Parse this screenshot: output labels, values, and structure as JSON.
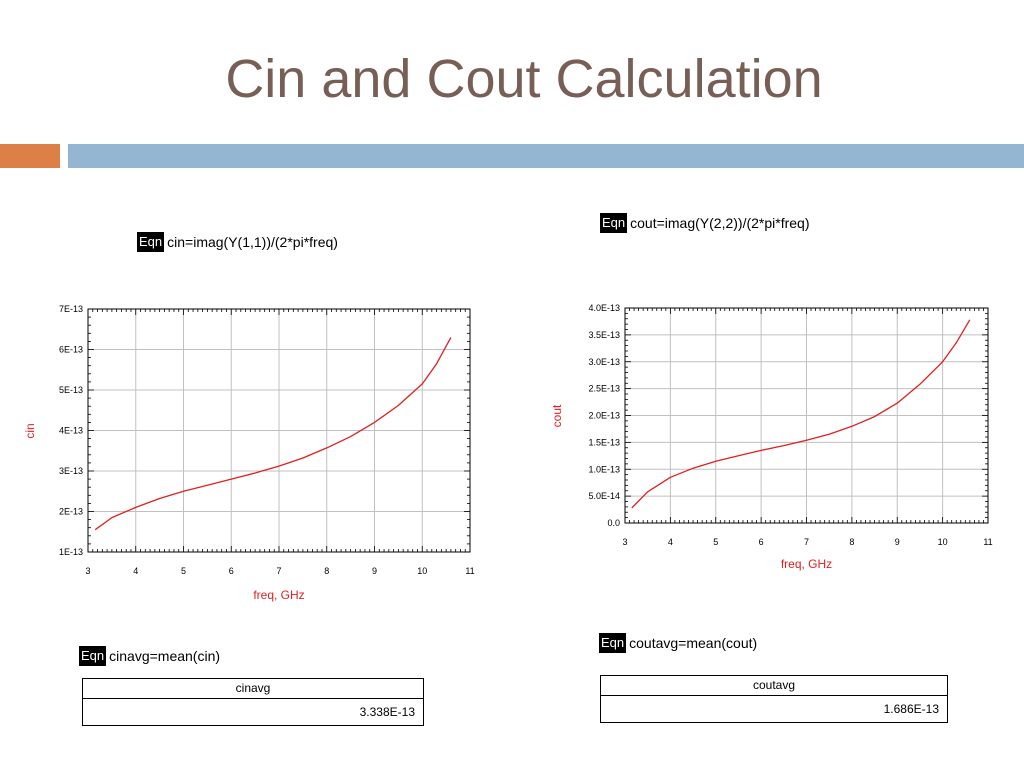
{
  "slide": {
    "title": "Cin and Cout Calculation",
    "colors": {
      "title": "#775f55",
      "accent_orange": "#dd8047",
      "accent_blue": "#94b6d2",
      "trace": "#e02020",
      "axis_label": "#e02020",
      "grid": "#c0c0c0"
    }
  },
  "left": {
    "eqn": {
      "tag": "Eqn",
      "expr": "cin=imag(Y(1,1))/(2*pi*freq)"
    },
    "avg_eqn": {
      "tag": "Eqn",
      "expr": "cinavg=mean(cin)"
    },
    "table": {
      "header": "cinavg",
      "value": "3.338E-13"
    }
  },
  "right": {
    "eqn": {
      "tag": "Eqn",
      "expr": "cout=imag(Y(2,2))/(2*pi*freq)"
    },
    "avg_eqn": {
      "tag": "Eqn",
      "expr": "coutavg=mean(cout)"
    },
    "table": {
      "header": "coutavg",
      "value": "1.686E-13"
    }
  },
  "chart_data": [
    {
      "type": "line",
      "xlabel": "freq, GHz",
      "ylabel": "cin",
      "xlim": [
        3,
        11
      ],
      "ylim": [
        1e-13,
        7e-13
      ],
      "xticks": [
        "3",
        "4",
        "5",
        "6",
        "7",
        "8",
        "9",
        "10",
        "11"
      ],
      "yticks": [
        "1E-13",
        "2E-13",
        "3E-13",
        "4E-13",
        "5E-13",
        "6E-13",
        "7E-13"
      ],
      "grid": true,
      "series": [
        {
          "x": [
            3.15,
            3.5,
            4,
            4.5,
            5,
            5.5,
            6,
            6.5,
            7,
            7.5,
            8,
            8.5,
            9,
            9.5,
            10,
            10.3,
            10.6
          ],
          "y": [
            1.55e-13,
            1.85e-13,
            2.1e-13,
            2.32e-13,
            2.5e-13,
            2.65e-13,
            2.8e-13,
            2.95e-13,
            3.12e-13,
            3.32e-13,
            3.57e-13,
            3.85e-13,
            4.2e-13,
            4.62e-13,
            5.15e-13,
            5.65e-13,
            6.3e-13
          ]
        }
      ]
    },
    {
      "type": "line",
      "xlabel": "freq, GHz",
      "ylabel": "cout",
      "xlim": [
        3,
        11
      ],
      "ylim": [
        0,
        4e-13
      ],
      "xticks": [
        "3",
        "4",
        "5",
        "6",
        "7",
        "8",
        "9",
        "10",
        "11"
      ],
      "yticks": [
        "0.0",
        "5.0E-14",
        "1.0E-13",
        "1.5E-13",
        "2.0E-13",
        "2.5E-13",
        "3.0E-13",
        "3.5E-13",
        "4.0E-13"
      ],
      "grid": true,
      "series": [
        {
          "x": [
            3.15,
            3.5,
            4,
            4.5,
            5,
            5.5,
            6,
            6.5,
            7,
            7.5,
            8,
            8.5,
            9,
            9.5,
            10,
            10.3,
            10.6
          ],
          "y": [
            2.8e-14,
            5.8e-14,
            8.5e-14,
            1.02e-13,
            1.15e-13,
            1.25e-13,
            1.35e-13,
            1.44e-13,
            1.54e-13,
            1.65e-13,
            1.8e-13,
            1.98e-13,
            2.23e-13,
            2.58e-13,
            3e-13,
            3.35e-13,
            3.78e-13
          ]
        }
      ]
    }
  ]
}
